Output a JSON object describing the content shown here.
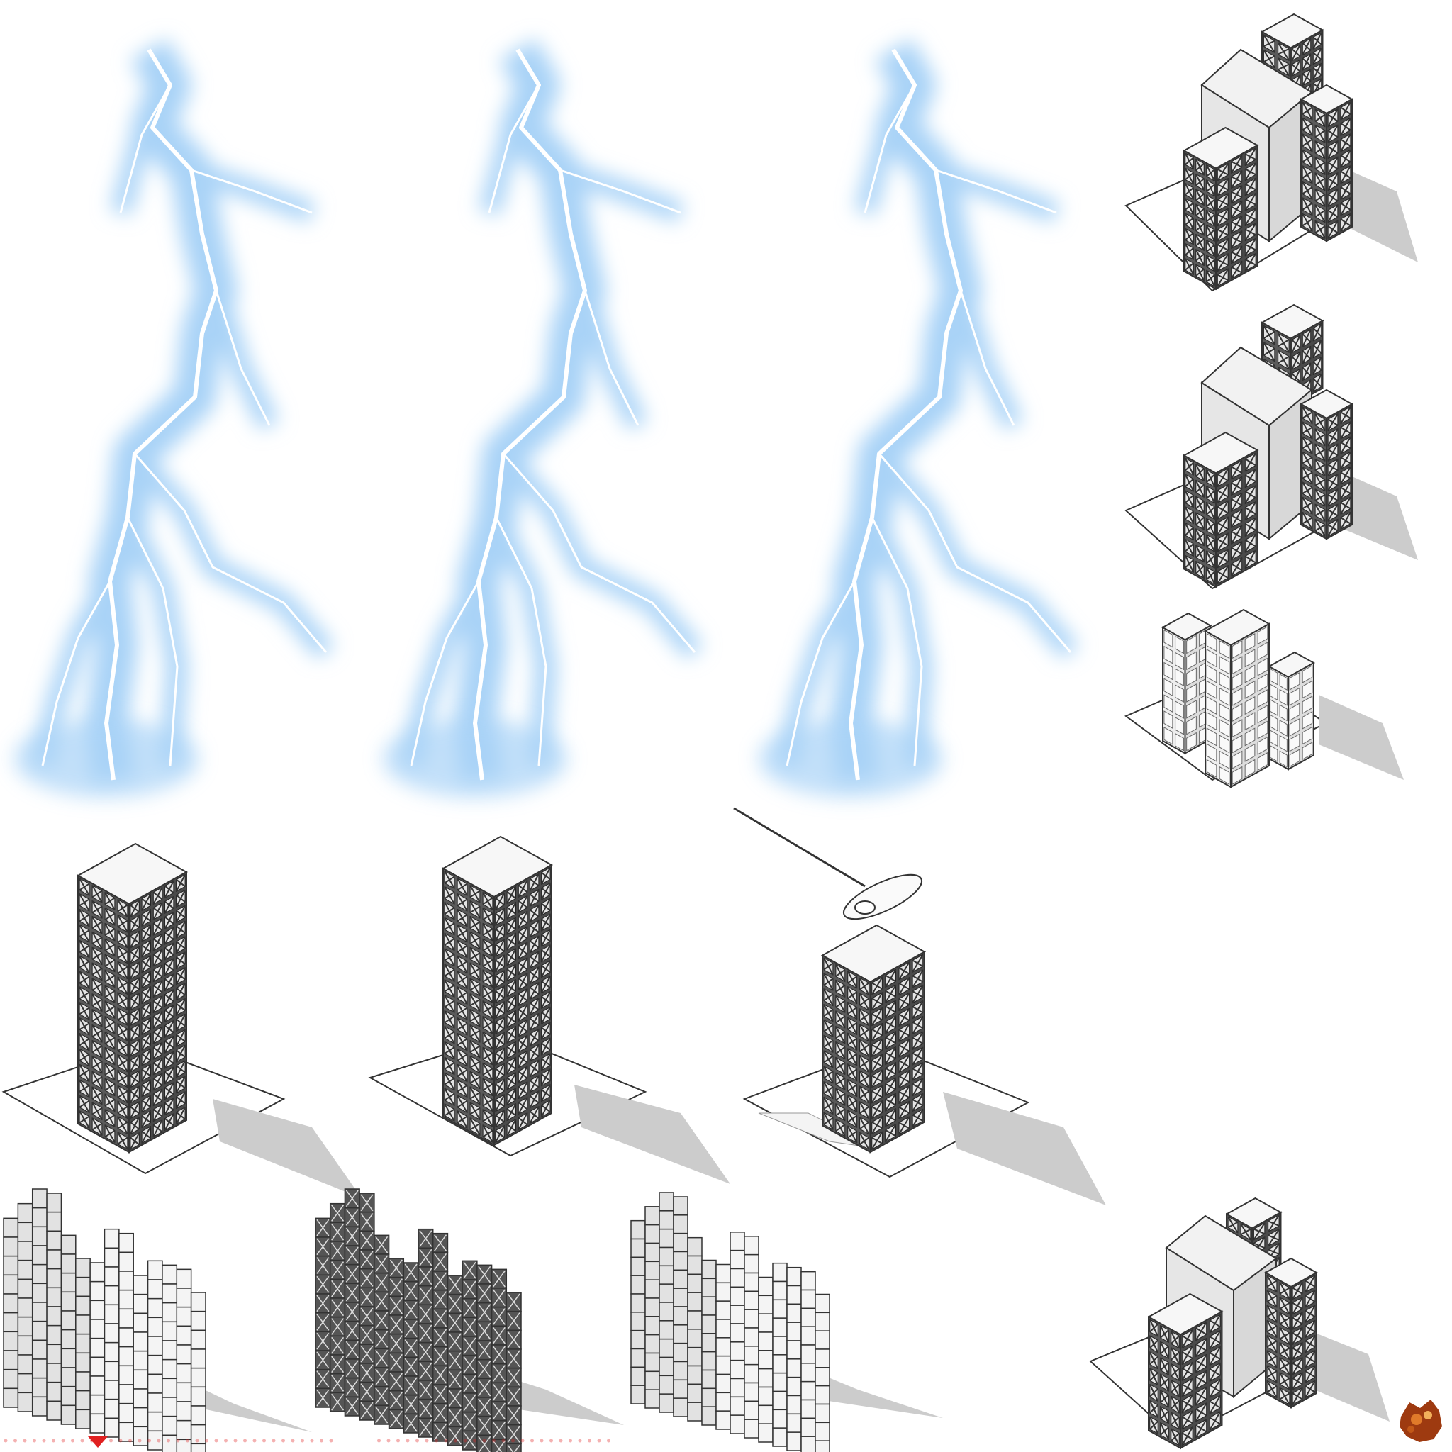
{
  "sheet": {
    "background": "#ffffff",
    "accent_colors": {
      "lightning_glow": "#a9d3f7",
      "lightning_core": "#ffffff",
      "frame_dark": "#3a3a3a",
      "panel_light": "#e8e8e8",
      "shadow": "#c8c8c8",
      "marker_red": "#e02020",
      "fire": "#b8400e"
    }
  },
  "sprites": {
    "lightning": [
      "lightning-bolt-frame-1",
      "lightning-bolt-frame-2",
      "lightning-bolt-frame-3"
    ],
    "buildings": [
      "lattice-complex-open",
      "lattice-complex-roofed",
      "apartment-block",
      "lattice-tower-tall-open",
      "lattice-tower-notched-open",
      "lattice-tower-with-airship",
      "wall-ruin-light",
      "wall-ruin-lattice",
      "wall-ruin-corner-light",
      "lattice-complex-damaged"
    ],
    "effects": [
      "fire-debris-icon",
      "marker-dots-strip",
      "marker-triangle-icon"
    ]
  }
}
